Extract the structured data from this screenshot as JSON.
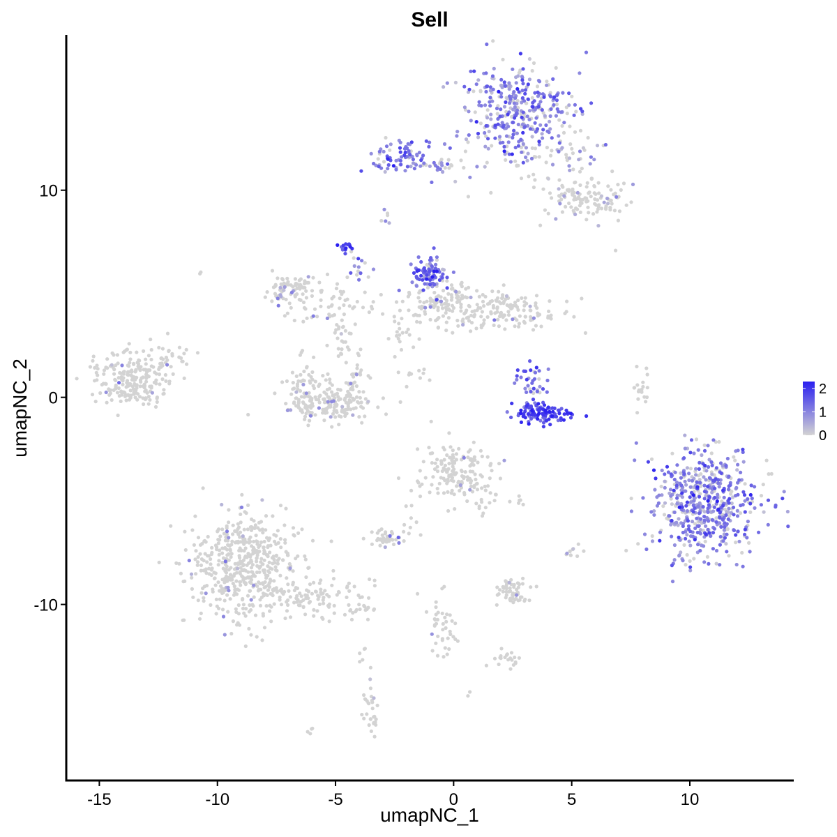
{
  "chart_data": {
    "type": "scatter",
    "title": "Sell",
    "xlabel": "umapNC_1",
    "ylabel": "umapNC_2",
    "xlim": [
      -16.4,
      14.4
    ],
    "ylim": [
      -18.5,
      17.5
    ],
    "x_ticks": [
      -15,
      -10,
      -5,
      0,
      5,
      10
    ],
    "x_tick_labels": [
      "-15",
      "-10",
      "-5",
      "0",
      "5",
      "10"
    ],
    "y_ticks": [
      -10,
      0,
      10
    ],
    "y_tick_labels": [
      "-10",
      "0",
      "10"
    ],
    "grid": false,
    "color_scale": {
      "low_color": "#d3d3d3",
      "high_color": "#2a1ff0",
      "min": 0,
      "max": 2.3,
      "ticks": [
        0,
        1,
        2
      ],
      "tick_labels": [
        "0",
        "1",
        "2"
      ],
      "legend_position": "right"
    },
    "clusters": [
      {
        "cx": 2.7,
        "cy": 14.0,
        "sx": 1.2,
        "sy": 1.1,
        "n": 320,
        "expr_mean": 1.1,
        "expr_sd": 0.45,
        "frac_expr": 0.8
      },
      {
        "cx": 3.7,
        "cy": 12.0,
        "sx": 1.6,
        "sy": 0.8,
        "n": 80,
        "expr_mean": 0.7,
        "expr_sd": 0.3,
        "frac_expr": 0.35
      },
      {
        "cx": 5.6,
        "cy": 9.6,
        "sx": 0.9,
        "sy": 0.55,
        "n": 120,
        "expr_mean": 0.6,
        "expr_sd": 0.3,
        "frac_expr": 0.1
      },
      {
        "cx": -2.2,
        "cy": 11.6,
        "sx": 0.8,
        "sy": 0.45,
        "n": 80,
        "expr_mean": 1.2,
        "expr_sd": 0.35,
        "frac_expr": 0.85
      },
      {
        "cx": -0.5,
        "cy": 11.2,
        "sx": 0.7,
        "sy": 0.2,
        "n": 25,
        "expr_mean": 1.0,
        "expr_sd": 0.3,
        "frac_expr": 0.4
      },
      {
        "cx": -2.9,
        "cy": 8.6,
        "sx": 0.15,
        "sy": 0.15,
        "n": 6,
        "expr_mean": 0.8,
        "expr_sd": 0.2,
        "frac_expr": 0.6
      },
      {
        "cx": -4.6,
        "cy": 7.3,
        "sx": 0.2,
        "sy": 0.2,
        "n": 14,
        "expr_mean": 1.9,
        "expr_sd": 0.3,
        "frac_expr": 1.0
      },
      {
        "cx": -4.1,
        "cy": 6.2,
        "sx": 0.25,
        "sy": 0.45,
        "n": 12,
        "expr_mean": 1.1,
        "expr_sd": 0.3,
        "frac_expr": 0.6
      },
      {
        "cx": -7.0,
        "cy": 5.3,
        "sx": 0.5,
        "sy": 0.4,
        "n": 70,
        "expr_mean": 0.8,
        "expr_sd": 0.3,
        "frac_expr": 0.15
      },
      {
        "cx": -5.4,
        "cy": 4.6,
        "sx": 1.2,
        "sy": 0.6,
        "n": 60,
        "expr_mean": 0.8,
        "expr_sd": 0.3,
        "frac_expr": 0.1
      },
      {
        "cx": -4.8,
        "cy": 2.5,
        "sx": 0.3,
        "sy": 0.9,
        "n": 25,
        "expr_mean": 0.7,
        "expr_sd": 0.3,
        "frac_expr": 0.05
      },
      {
        "cx": -5.5,
        "cy": -0.2,
        "sx": 1.0,
        "sy": 0.5,
        "n": 190,
        "expr_mean": 0.7,
        "expr_sd": 0.3,
        "frac_expr": 0.07
      },
      {
        "cx": -6.3,
        "cy": 0.6,
        "sx": 0.3,
        "sy": 0.9,
        "n": 30,
        "expr_mean": 0.7,
        "expr_sd": 0.3,
        "frac_expr": 0.05
      },
      {
        "cx": -4.2,
        "cy": 0.8,
        "sx": 0.3,
        "sy": 0.8,
        "n": 30,
        "expr_mean": 0.8,
        "expr_sd": 0.3,
        "frac_expr": 0.1
      },
      {
        "cx": -1.1,
        "cy": 6.0,
        "sx": 0.35,
        "sy": 0.4,
        "n": 90,
        "expr_mean": 1.3,
        "expr_sd": 0.4,
        "frac_expr": 0.9
      },
      {
        "cx": -0.4,
        "cy": 4.6,
        "sx": 1.0,
        "sy": 0.5,
        "n": 120,
        "expr_mean": 0.8,
        "expr_sd": 0.3,
        "frac_expr": 0.15
      },
      {
        "cx": 2.2,
        "cy": 4.1,
        "sx": 1.3,
        "sy": 0.5,
        "n": 140,
        "expr_mean": 0.7,
        "expr_sd": 0.3,
        "frac_expr": 0.05
      },
      {
        "cx": -2.2,
        "cy": 2.8,
        "sx": 0.3,
        "sy": 0.7,
        "n": 20,
        "expr_mean": 0.6,
        "expr_sd": 0.2,
        "frac_expr": 0.0
      },
      {
        "cx": -1.7,
        "cy": 1.2,
        "sx": 0.5,
        "sy": 0.3,
        "n": 10,
        "expr_mean": 0.6,
        "expr_sd": 0.2,
        "frac_expr": 0.0
      },
      {
        "cx": 3.6,
        "cy": -0.8,
        "sx": 0.6,
        "sy": 0.25,
        "n": 110,
        "expr_mean": 1.8,
        "expr_sd": 0.35,
        "frac_expr": 1.0
      },
      {
        "cx": 3.4,
        "cy": 0.6,
        "sx": 0.3,
        "sy": 0.5,
        "n": 30,
        "expr_mean": 1.3,
        "expr_sd": 0.35,
        "frac_expr": 0.8
      },
      {
        "cx": 2.8,
        "cy": 1.0,
        "sx": 0.2,
        "sy": 0.25,
        "n": 8,
        "expr_mean": 1.3,
        "expr_sd": 0.3,
        "frac_expr": 0.7
      },
      {
        "cx": 8.0,
        "cy": 0.4,
        "sx": 0.15,
        "sy": 0.6,
        "n": 18,
        "expr_mean": 0.5,
        "expr_sd": 0.2,
        "frac_expr": 0.0
      },
      {
        "cx": 10.6,
        "cy": -5.1,
        "sx": 1.1,
        "sy": 1.35,
        "n": 560,
        "expr_mean": 1.1,
        "expr_sd": 0.45,
        "frac_expr": 0.75
      },
      {
        "cx": -13.6,
        "cy": 0.9,
        "sx": 0.9,
        "sy": 0.7,
        "n": 230,
        "expr_mean": 0.8,
        "expr_sd": 0.3,
        "frac_expr": 0.03
      },
      {
        "cx": -11.8,
        "cy": 2.1,
        "sx": 0.3,
        "sy": 0.4,
        "n": 14,
        "expr_mean": 0.6,
        "expr_sd": 0.2,
        "frac_expr": 0.0
      },
      {
        "cx": -10.7,
        "cy": 6.0,
        "sx": 0.05,
        "sy": 0.05,
        "n": 2,
        "expr_mean": 0.5,
        "expr_sd": 0.1,
        "frac_expr": 0.0
      },
      {
        "cx": 0.2,
        "cy": -3.6,
        "sx": 0.8,
        "sy": 0.7,
        "n": 150,
        "expr_mean": 0.8,
        "expr_sd": 0.3,
        "frac_expr": 0.05
      },
      {
        "cx": 1.1,
        "cy": -4.8,
        "sx": 0.4,
        "sy": 0.4,
        "n": 20,
        "expr_mean": 0.7,
        "expr_sd": 0.3,
        "frac_expr": 0.0
      },
      {
        "cx": -8.8,
        "cy": -8.2,
        "sx": 1.2,
        "sy": 1.3,
        "n": 520,
        "expr_mean": 0.8,
        "expr_sd": 0.3,
        "frac_expr": 0.02
      },
      {
        "cx": -5.7,
        "cy": -9.6,
        "sx": 1.1,
        "sy": 0.45,
        "n": 90,
        "expr_mean": 0.7,
        "expr_sd": 0.3,
        "frac_expr": 0.0
      },
      {
        "cx": -4.0,
        "cy": -10.2,
        "sx": 0.35,
        "sy": 0.2,
        "n": 15,
        "expr_mean": 0.6,
        "expr_sd": 0.2,
        "frac_expr": 0.0
      },
      {
        "cx": -2.9,
        "cy": -6.8,
        "sx": 0.3,
        "sy": 0.2,
        "n": 40,
        "expr_mean": 0.8,
        "expr_sd": 0.3,
        "frac_expr": 0.1
      },
      {
        "cx": -1.6,
        "cy": -6.2,
        "sx": 0.3,
        "sy": 0.5,
        "n": 10,
        "expr_mean": 0.6,
        "expr_sd": 0.2,
        "frac_expr": 0.0
      },
      {
        "cx": 2.5,
        "cy": -9.4,
        "sx": 0.4,
        "sy": 0.3,
        "n": 60,
        "expr_mean": 0.7,
        "expr_sd": 0.3,
        "frac_expr": 0.03
      },
      {
        "cx": -0.4,
        "cy": -11.0,
        "sx": 0.3,
        "sy": 0.9,
        "n": 40,
        "expr_mean": 0.7,
        "expr_sd": 0.3,
        "frac_expr": 0.03
      },
      {
        "cx": 2.2,
        "cy": -12.6,
        "sx": 0.3,
        "sy": 0.25,
        "n": 20,
        "expr_mean": 0.6,
        "expr_sd": 0.2,
        "frac_expr": 0.0
      },
      {
        "cx": 5.1,
        "cy": -7.4,
        "sx": 0.15,
        "sy": 0.2,
        "n": 10,
        "expr_mean": 0.7,
        "expr_sd": 0.2,
        "frac_expr": 0.1
      },
      {
        "cx": 2.8,
        "cy": -5.0,
        "sx": 0.15,
        "sy": 0.1,
        "n": 6,
        "expr_mean": 0.6,
        "expr_sd": 0.2,
        "frac_expr": 0.0
      },
      {
        "cx": -3.5,
        "cy": -15.0,
        "sx": 0.2,
        "sy": 0.7,
        "n": 30,
        "expr_mean": 0.7,
        "expr_sd": 0.3,
        "frac_expr": 0.05
      },
      {
        "cx": -3.9,
        "cy": -12.4,
        "sx": 0.1,
        "sy": 0.3,
        "n": 5,
        "expr_mean": 0.6,
        "expr_sd": 0.2,
        "frac_expr": 0.0
      },
      {
        "cx": -6.1,
        "cy": -16.1,
        "sx": 0.15,
        "sy": 0.1,
        "n": 4,
        "expr_mean": 0.5,
        "expr_sd": 0.1,
        "frac_expr": 0.0
      },
      {
        "cx": 6.8,
        "cy": 7.1,
        "sx": 0.05,
        "sy": 0.05,
        "n": 1,
        "expr_mean": 0.5,
        "expr_sd": 0.1,
        "frac_expr": 0.0
      },
      {
        "cx": 0.6,
        "cy": -14.3,
        "sx": 0.1,
        "sy": 0.1,
        "n": 2,
        "expr_mean": 0.5,
        "expr_sd": 0.1,
        "frac_expr": 0.0
      }
    ]
  }
}
